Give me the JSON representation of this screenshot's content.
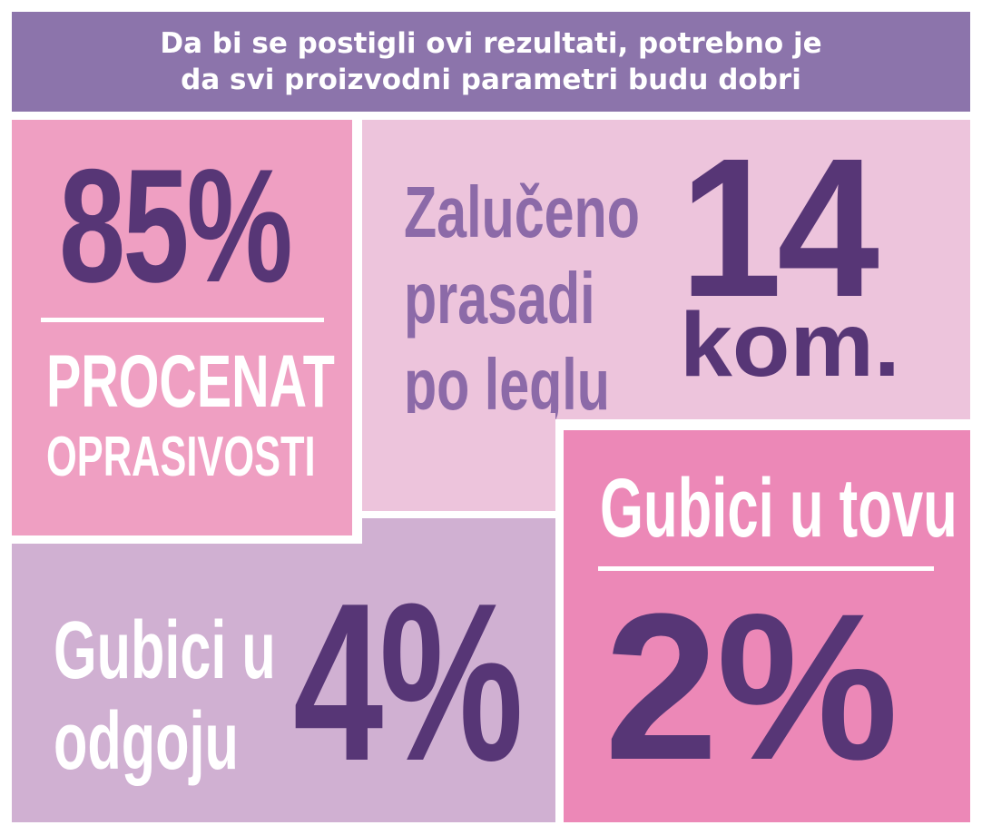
{
  "header": {
    "line1": "Da bi se postigli ovi rezultati, potrebno je",
    "line2": "da svi proizvodni parametri budu dobri"
  },
  "farrowing_rate": {
    "value": "85%",
    "label_line1": "PROCENAT",
    "label_line2": "OPRASIVOSTI"
  },
  "weaned_piglets": {
    "text_line1": "Zalučeno",
    "text_line2": "prasadi",
    "text_line3": "po leglu",
    "value": "14",
    "unit": "kom."
  },
  "nursery_losses": {
    "text_line1": "Gubici u",
    "text_line2": "odgoju",
    "value": "4%"
  },
  "fattening_losses": {
    "label": "Gubici u tovu",
    "value": "2%"
  },
  "colors": {
    "header": "#8c74ab",
    "pink": "#ef9fc2",
    "light_pink": "#edc4dc",
    "lavender": "#d0b0d2",
    "hot_pink": "#ec88b7",
    "dark_purple": "#573676",
    "mid_purple": "#8c6aa8",
    "white": "#ffffff"
  }
}
